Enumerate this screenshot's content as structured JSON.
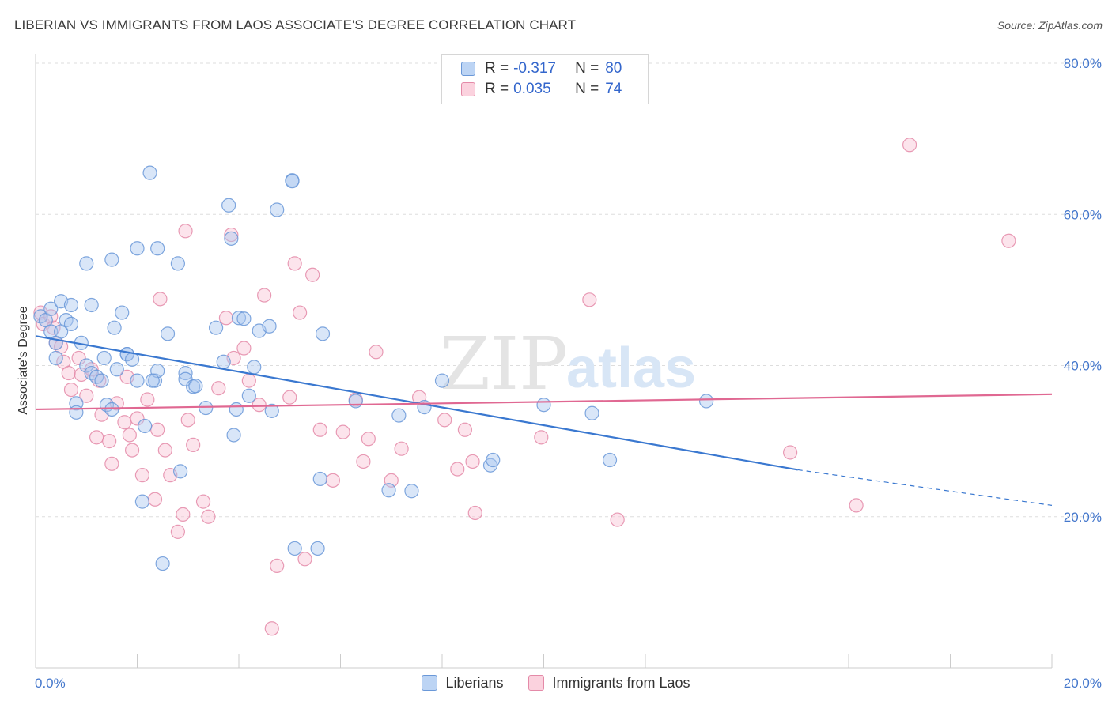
{
  "header": {
    "title": "LIBERIAN VS IMMIGRANTS FROM LAOS ASSOCIATE'S DEGREE CORRELATION CHART",
    "source": "Source: ZipAtlas.com"
  },
  "watermark": {
    "part1": "ZIP",
    "part2": "atlas"
  },
  "colors": {
    "blue_fill": "#aac8f0",
    "blue_stroke": "#6a98d8",
    "blue_line": "#3a78d0",
    "pink_fill": "#f8c4d4",
    "pink_stroke": "#e48aa8",
    "pink_line": "#e06892",
    "grid": "#dddddd",
    "tick_text": "#4477cc"
  },
  "legend": {
    "rows": [
      {
        "r_label": "R =",
        "r_value": "-0.317",
        "n_label": "N =",
        "n_value": "80"
      },
      {
        "r_label": "R =",
        "r_value": "0.035",
        "n_label": "N =",
        "n_value": "74"
      }
    ],
    "bottom": [
      "Liberians",
      "Immigrants from Laos"
    ]
  },
  "chart_data": {
    "type": "scatter",
    "title": "LIBERIAN VS IMMIGRANTS FROM LAOS ASSOCIATE'S DEGREE CORRELATION CHART",
    "xlabel": "",
    "ylabel": "Associate's Degree",
    "xlim": [
      0,
      20
    ],
    "ylim": [
      0,
      80
    ],
    "x_tick_labels": [
      "0.0%",
      "20.0%"
    ],
    "y_ticks": [
      20,
      40,
      60,
      80
    ],
    "y_tick_labels": [
      "20.0%",
      "40.0%",
      "60.0%",
      "80.0%"
    ],
    "grid": true,
    "legend_placement": "top-center",
    "series": [
      {
        "name": "Liberians",
        "R": -0.317,
        "N": 80,
        "trend": {
          "x0": 0,
          "y0": 43.9,
          "x1": 15.0,
          "y1": 26.2,
          "dash_to_x": 20,
          "dash_to_y": 21.5
        },
        "points": [
          [
            0.1,
            46.5
          ],
          [
            0.2,
            46.0
          ],
          [
            0.3,
            47.5
          ],
          [
            0.3,
            44.5
          ],
          [
            0.4,
            43.0
          ],
          [
            0.4,
            41.0
          ],
          [
            0.5,
            44.5
          ],
          [
            0.5,
            48.5
          ],
          [
            0.6,
            46.0
          ],
          [
            0.7,
            48.0
          ],
          [
            0.7,
            45.5
          ],
          [
            0.8,
            35.0
          ],
          [
            0.8,
            33.8
          ],
          [
            0.9,
            43.0
          ],
          [
            1.0,
            53.5
          ],
          [
            1.0,
            40.0
          ],
          [
            1.1,
            39.0
          ],
          [
            1.1,
            48.0
          ],
          [
            1.2,
            38.5
          ],
          [
            1.3,
            38.0
          ],
          [
            1.35,
            41.0
          ],
          [
            1.4,
            34.8
          ],
          [
            1.5,
            54.0
          ],
          [
            1.5,
            34.2
          ],
          [
            1.55,
            45.0
          ],
          [
            1.6,
            39.5
          ],
          [
            1.7,
            47.0
          ],
          [
            1.8,
            41.5
          ],
          [
            1.8,
            41.5
          ],
          [
            1.9,
            40.8
          ],
          [
            2.0,
            38.0
          ],
          [
            2.0,
            55.5
          ],
          [
            2.1,
            22.0
          ],
          [
            2.15,
            32.0
          ],
          [
            2.25,
            65.5
          ],
          [
            2.35,
            38.0
          ],
          [
            2.4,
            39.3
          ],
          [
            2.4,
            55.5
          ],
          [
            2.5,
            13.8
          ],
          [
            2.6,
            44.2
          ],
          [
            2.8,
            53.5
          ],
          [
            2.85,
            26.0
          ],
          [
            2.95,
            39.0
          ],
          [
            2.95,
            38.2
          ],
          [
            3.1,
            37.2
          ],
          [
            3.15,
            37.3
          ],
          [
            3.35,
            34.4
          ],
          [
            3.55,
            45.0
          ],
          [
            3.7,
            40.5
          ],
          [
            3.8,
            61.2
          ],
          [
            3.85,
            56.8
          ],
          [
            3.9,
            30.8
          ],
          [
            3.95,
            34.2
          ],
          [
            4.0,
            46.3
          ],
          [
            4.2,
            36.0
          ],
          [
            4.3,
            39.8
          ],
          [
            4.4,
            44.6
          ],
          [
            4.6,
            45.2
          ],
          [
            4.65,
            34.0
          ],
          [
            4.75,
            60.6
          ],
          [
            5.05,
            64.5
          ],
          [
            5.05,
            64.4
          ],
          [
            5.1,
            15.8
          ],
          [
            5.55,
            15.8
          ],
          [
            5.6,
            25.0
          ],
          [
            5.65,
            44.2
          ],
          [
            6.3,
            35.3
          ],
          [
            6.95,
            23.5
          ],
          [
            7.15,
            33.4
          ],
          [
            7.4,
            23.4
          ],
          [
            7.65,
            34.5
          ],
          [
            8.0,
            38.0
          ],
          [
            8.95,
            26.8
          ],
          [
            9.0,
            27.5
          ],
          [
            10.0,
            34.8
          ],
          [
            10.95,
            33.7
          ],
          [
            11.3,
            27.5
          ],
          [
            13.2,
            35.3
          ],
          [
            4.1,
            46.2
          ],
          [
            2.3,
            38.0
          ]
        ]
      },
      {
        "name": "Immigrants from Laos",
        "R": 0.035,
        "N": 74,
        "trend": {
          "x0": 0,
          "y0": 34.2,
          "x1": 20,
          "y1": 36.2
        },
        "points": [
          [
            0.1,
            47.0
          ],
          [
            0.15,
            45.5
          ],
          [
            0.3,
            46.5
          ],
          [
            0.35,
            45.0
          ],
          [
            0.4,
            43.0
          ],
          [
            0.5,
            42.5
          ],
          [
            0.55,
            40.5
          ],
          [
            0.65,
            39.0
          ],
          [
            0.7,
            36.8
          ],
          [
            0.85,
            41.0
          ],
          [
            0.9,
            38.8
          ],
          [
            1.0,
            36.0
          ],
          [
            1.1,
            39.5
          ],
          [
            1.2,
            30.5
          ],
          [
            1.25,
            38.0
          ],
          [
            1.3,
            33.5
          ],
          [
            1.45,
            30.0
          ],
          [
            1.5,
            27.0
          ],
          [
            1.6,
            35.0
          ],
          [
            1.75,
            32.5
          ],
          [
            1.8,
            38.5
          ],
          [
            1.85,
            30.8
          ],
          [
            1.9,
            28.8
          ],
          [
            2.0,
            33.0
          ],
          [
            2.1,
            25.5
          ],
          [
            2.2,
            35.5
          ],
          [
            2.35,
            22.3
          ],
          [
            2.4,
            31.5
          ],
          [
            2.45,
            48.8
          ],
          [
            2.55,
            28.8
          ],
          [
            2.65,
            25.5
          ],
          [
            2.8,
            18.0
          ],
          [
            2.9,
            20.3
          ],
          [
            2.95,
            57.8
          ],
          [
            3.0,
            32.8
          ],
          [
            3.1,
            29.5
          ],
          [
            3.3,
            22.0
          ],
          [
            3.4,
            20.0
          ],
          [
            3.6,
            37.0
          ],
          [
            3.75,
            46.3
          ],
          [
            3.85,
            57.3
          ],
          [
            3.9,
            41.0
          ],
          [
            4.1,
            42.3
          ],
          [
            4.2,
            38.0
          ],
          [
            4.4,
            34.8
          ],
          [
            4.5,
            49.3
          ],
          [
            4.65,
            5.2
          ],
          [
            4.75,
            13.5
          ],
          [
            5.0,
            35.8
          ],
          [
            5.1,
            53.5
          ],
          [
            5.2,
            47.0
          ],
          [
            5.3,
            14.4
          ],
          [
            5.45,
            52.0
          ],
          [
            5.6,
            31.5
          ],
          [
            5.85,
            24.8
          ],
          [
            6.05,
            31.2
          ],
          [
            6.3,
            35.5
          ],
          [
            6.45,
            27.3
          ],
          [
            6.55,
            30.3
          ],
          [
            6.7,
            41.8
          ],
          [
            7.0,
            24.8
          ],
          [
            7.2,
            29.0
          ],
          [
            7.55,
            35.8
          ],
          [
            8.05,
            32.8
          ],
          [
            8.3,
            26.3
          ],
          [
            8.45,
            31.5
          ],
          [
            8.6,
            27.3
          ],
          [
            8.65,
            20.5
          ],
          [
            9.95,
            30.5
          ],
          [
            10.9,
            48.7
          ],
          [
            11.45,
            19.6
          ],
          [
            14.85,
            28.5
          ],
          [
            16.15,
            21.5
          ],
          [
            17.2,
            69.2
          ],
          [
            19.15,
            56.5
          ]
        ]
      }
    ]
  }
}
